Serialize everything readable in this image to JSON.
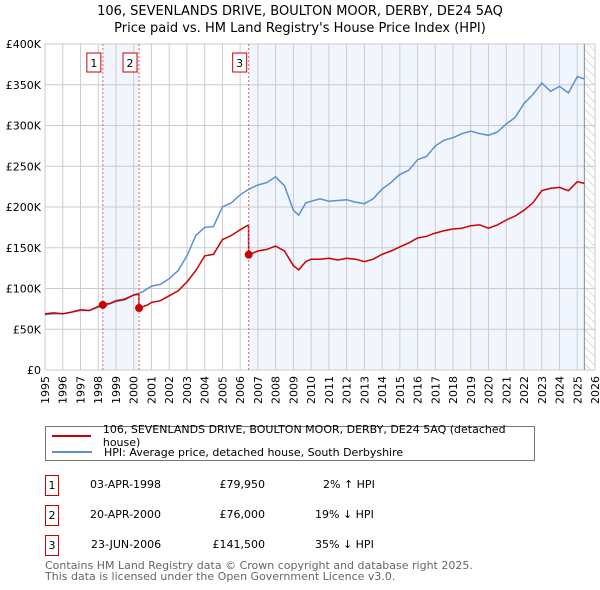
{
  "title_line1": "106, SEVENLANDS DRIVE, BOULTON MOOR, DERBY, DE24 5AQ",
  "title_line2": "Price paid vs. HM Land Registry's House Price Index (HPI)",
  "chart_data": {
    "type": "line",
    "title": "106, SEVENLANDS DRIVE, BOULTON MOOR, DERBY, DE24 5AQ — Price paid vs. HM Land Registry's House Price Index (HPI)",
    "xlim": [
      1995,
      2026
    ],
    "ylim": [
      0,
      400000
    ],
    "yticks": [
      0,
      50000,
      100000,
      150000,
      200000,
      250000,
      300000,
      350000,
      400000
    ],
    "ytick_labels": [
      "£0",
      "£50K",
      "£100K",
      "£150K",
      "£200K",
      "£250K",
      "£300K",
      "£350K",
      "£400K"
    ],
    "xtick_labels": [
      "1995",
      "1996",
      "1997",
      "1998",
      "1999",
      "2000",
      "2001",
      "2002",
      "2003",
      "2004",
      "2005",
      "2006",
      "2007",
      "2008",
      "2009",
      "2010",
      "2011",
      "2012",
      "2013",
      "2014",
      "2015",
      "2016",
      "2017",
      "2018",
      "2019",
      "2020",
      "2021",
      "2022",
      "2023",
      "2024",
      "2025",
      "2026"
    ],
    "grid": true,
    "series": [
      {
        "name": "106, SEVENLANDS DRIVE, BOULTON MOOR, DERBY, DE24 5AQ (detached house)",
        "color": "#cc0000",
        "x": [
          1995,
          1995.5,
          1996,
          1996.5,
          1997,
          1997.5,
          1998,
          1998.25,
          1998.7,
          1999,
          1999.5,
          2000,
          2000.29,
          2000.3,
          2000.8,
          2001,
          2001.5,
          2002,
          2002.5,
          2003,
          2003.5,
          2004,
          2004.5,
          2005,
          2005.5,
          2006,
          2006.47,
          2006.48,
          2007,
          2007.5,
          2008,
          2008.5,
          2009,
          2009.3,
          2009.7,
          2010,
          2010.5,
          2011,
          2011.5,
          2012,
          2012.5,
          2013,
          2013.5,
          2014,
          2014.5,
          2015,
          2015.5,
          2016,
          2016.5,
          2017,
          2017.5,
          2018,
          2018.5,
          2019,
          2019.5,
          2020,
          2020.5,
          2021,
          2021.5,
          2022,
          2022.5,
          2023,
          2023.5,
          2024,
          2024.5,
          2025,
          2025.4
        ],
        "y": [
          69000,
          70000,
          69000,
          71000,
          74000,
          73000,
          78000,
          79950,
          82000,
          85000,
          87000,
          92000,
          93000,
          76000,
          80000,
          83000,
          85000,
          91000,
          97000,
          108000,
          122000,
          140000,
          142000,
          160000,
          165000,
          172000,
          178000,
          141500,
          146000,
          148000,
          152000,
          146000,
          128000,
          123000,
          133000,
          136000,
          136000,
          137000,
          135000,
          137000,
          136000,
          133000,
          136000,
          142000,
          146000,
          151000,
          156000,
          162000,
          164000,
          168000,
          171000,
          173000,
          174000,
          177000,
          178000,
          174000,
          178000,
          184000,
          189000,
          196000,
          205000,
          220000,
          223000,
          224000,
          220000,
          231000,
          229000
        ]
      },
      {
        "name": "HPI: Average price, detached house, South Derbyshire",
        "color": "#5b8fd6",
        "x": [
          1995,
          1995.5,
          1996,
          1996.5,
          1997,
          1997.5,
          1998,
          1998.5,
          1999,
          1999.5,
          2000,
          2000.5,
          2001,
          2001.5,
          2002,
          2002.5,
          2003,
          2003.5,
          2004,
          2004.5,
          2005,
          2005.5,
          2006,
          2006.5,
          2007,
          2007.5,
          2008,
          2008.5,
          2009,
          2009.3,
          2009.7,
          2010,
          2010.5,
          2011,
          2011.5,
          2012,
          2012.5,
          2013,
          2013.5,
          2014,
          2014.5,
          2015,
          2015.5,
          2016,
          2016.5,
          2017,
          2017.5,
          2018,
          2018.5,
          2019,
          2019.5,
          2020,
          2020.5,
          2021,
          2021.5,
          2022,
          2022.5,
          2023,
          2023.5,
          2024,
          2024.5,
          2025,
          2025.4
        ],
        "y": [
          68000,
          69000,
          69000,
          71000,
          73000,
          73000,
          77000,
          80000,
          84000,
          86000,
          92000,
          96000,
          103000,
          105000,
          112000,
          122000,
          140000,
          165000,
          175000,
          176000,
          200000,
          205000,
          215000,
          222000,
          227000,
          230000,
          237000,
          226000,
          196000,
          190000,
          205000,
          207000,
          210000,
          207000,
          208000,
          209000,
          206000,
          204000,
          210000,
          222000,
          230000,
          240000,
          245000,
          258000,
          262000,
          275000,
          282000,
          285000,
          290000,
          293000,
          290000,
          288000,
          292000,
          302000,
          310000,
          327000,
          338000,
          352000,
          342000,
          348000,
          340000,
          360000,
          357000
        ]
      }
    ],
    "sales": [
      {
        "label": "1",
        "x": 1998.26,
        "date": "03-APR-1998",
        "price": "£79,950",
        "price_value": 79950,
        "hpi": "2% ↑ HPI"
      },
      {
        "label": "2",
        "x": 2000.3,
        "date": "20-APR-2000",
        "price": "£76,000",
        "price_value": 76000,
        "hpi": "19% ↓ HPI"
      },
      {
        "label": "3",
        "x": 2006.48,
        "date": "23-JUN-2006",
        "price": "£141,500",
        "price_value": 141500,
        "hpi": "35% ↓ HPI"
      }
    ],
    "forecast_hatch_start": 2025.4,
    "legend_position": "below"
  },
  "footer_line1": "Contains HM Land Registry data © Crown copyright and database right 2025.",
  "footer_line2": "This data is licensed under the Open Government Licence v3.0."
}
